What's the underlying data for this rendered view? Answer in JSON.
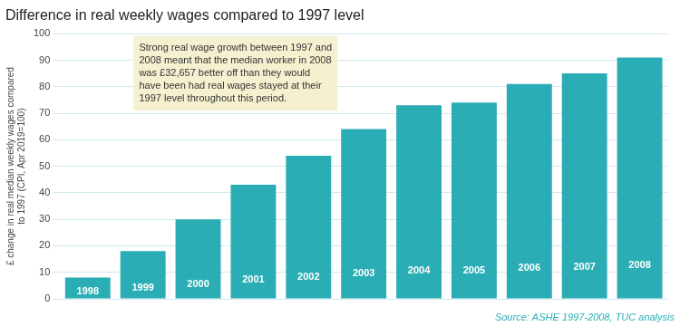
{
  "chart_data": {
    "type": "bar",
    "title": "Difference in real weekly wages compared to 1997 level",
    "ylabel": "£ change in real median weekly wages compared\nto 1997 (CPI, Apr 2019=100)",
    "annotation": "Strong real wage growth between 1997 and\n2008 meant that the median worker in 2008\nwas £32,657 better off than they would\nhave been had real wages stayed at their\n1997 level throughout this period.",
    "source": "Source: ASHE 1997-2008, TUC analysis",
    "categories": [
      "1998",
      "1999",
      "2000",
      "2001",
      "2002",
      "2003",
      "2004",
      "2005",
      "2006",
      "2007",
      "2008"
    ],
    "values": [
      8,
      18,
      30,
      43,
      54,
      64,
      73,
      74,
      81,
      85,
      91
    ],
    "color": "#2badb5",
    "ylim": [
      0,
      100
    ],
    "yticks": [
      0,
      10,
      20,
      30,
      40,
      50,
      60,
      70,
      80,
      90,
      100
    ],
    "grid": true,
    "tick_labels": "y"
  }
}
